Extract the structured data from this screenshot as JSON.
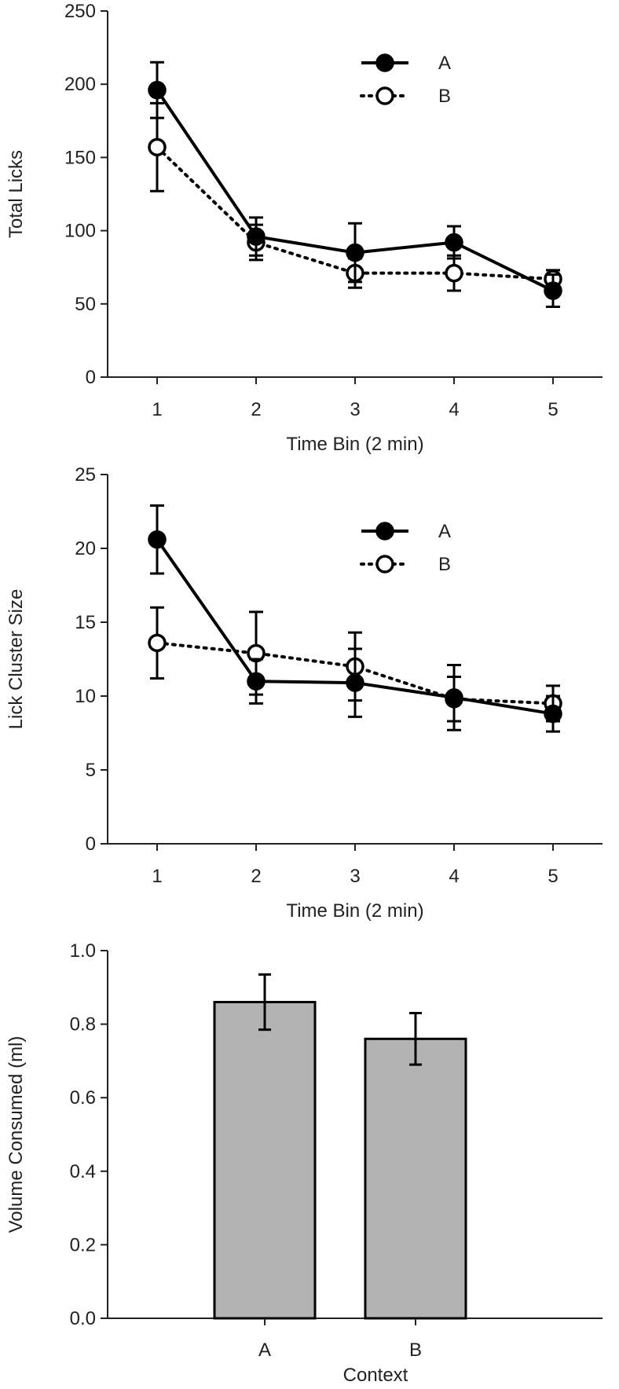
{
  "chart_data": [
    {
      "type": "line",
      "title": "",
      "xlabel": "Time Bin (2 min)",
      "ylabel": "Total Licks",
      "x": [
        1,
        2,
        3,
        4,
        5
      ],
      "ylim": [
        0,
        250
      ],
      "yticks": [
        0,
        50,
        100,
        150,
        200,
        250
      ],
      "grid": false,
      "legend": "top-right",
      "series": [
        {
          "name": "A",
          "marker": "filled-circle",
          "line": "solid",
          "values": [
            196,
            96,
            85,
            92,
            59
          ],
          "errors": [
            19,
            13,
            20,
            11,
            11
          ]
        },
        {
          "name": "B",
          "marker": "open-circle",
          "line": "dotted",
          "values": [
            157,
            92,
            71,
            71,
            67
          ],
          "errors": [
            30,
            12,
            10,
            12,
            6
          ]
        }
      ]
    },
    {
      "type": "line",
      "title": "",
      "xlabel": "Time Bin (2 min)",
      "ylabel": "Lick Cluster Size",
      "x": [
        1,
        2,
        3,
        4,
        5
      ],
      "ylim": [
        0,
        25
      ],
      "yticks": [
        0,
        5,
        10,
        15,
        20,
        25
      ],
      "grid": false,
      "legend": "top-right",
      "series": [
        {
          "name": "A",
          "marker": "filled-circle",
          "line": "solid",
          "values": [
            20.6,
            11.0,
            10.9,
            9.9,
            8.8
          ],
          "errors": [
            2.3,
            1.5,
            2.3,
            2.2,
            1.2
          ]
        },
        {
          "name": "B",
          "marker": "open-circle",
          "line": "dotted",
          "values": [
            13.6,
            12.9,
            12.0,
            9.8,
            9.5
          ],
          "errors": [
            2.4,
            2.8,
            2.3,
            1.5,
            1.2
          ]
        }
      ]
    },
    {
      "type": "bar",
      "title": "",
      "xlabel": "Context",
      "ylabel": "Volume Consumed (ml)",
      "categories": [
        "A",
        "B"
      ],
      "values": [
        0.86,
        0.76
      ],
      "errors": [
        0.075,
        0.07
      ],
      "ylim": [
        0,
        1.0
      ],
      "yticks": [
        "0.0",
        "0.2",
        "0.4",
        "0.6",
        "0.8",
        "1.0"
      ],
      "grid": false,
      "bar_color": "#b3b3b3"
    }
  ]
}
